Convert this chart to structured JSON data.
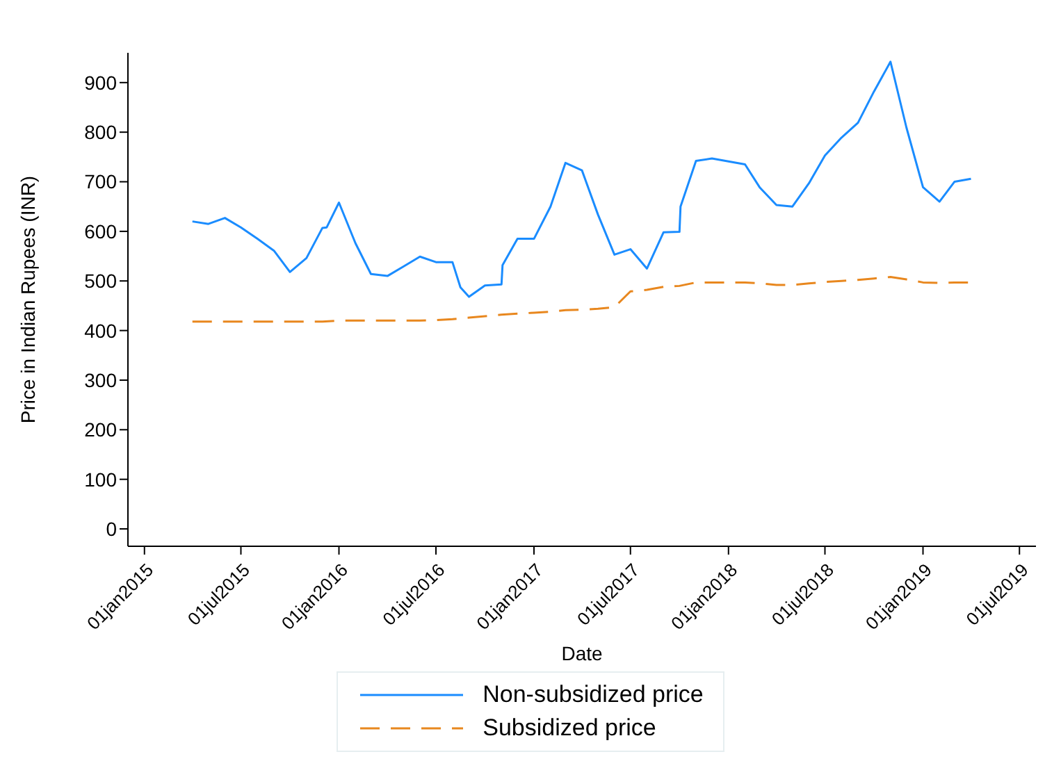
{
  "chart_data": {
    "type": "line",
    "xlabel": "Date",
    "ylabel": "Price in Indian Rupees (INR)",
    "xlim": [
      "2014-12-01",
      "2019-08-01"
    ],
    "xticks": [
      {
        "value": "2015-01-01",
        "label": "01jan2015"
      },
      {
        "value": "2015-07-01",
        "label": "01jul2015"
      },
      {
        "value": "2016-01-01",
        "label": "01jan2016"
      },
      {
        "value": "2016-07-01",
        "label": "01jul2016"
      },
      {
        "value": "2017-01-01",
        "label": "01jan2017"
      },
      {
        "value": "2017-07-01",
        "label": "01jul2017"
      },
      {
        "value": "2018-01-01",
        "label": "01jan2018"
      },
      {
        "value": "2018-07-01",
        "label": "01jul2018"
      },
      {
        "value": "2019-01-01",
        "label": "01jan2019"
      },
      {
        "value": "2019-07-01",
        "label": "01jul2019"
      }
    ],
    "ylim": [
      -35,
      960
    ],
    "yticks": [
      0,
      100,
      200,
      300,
      400,
      500,
      600,
      700,
      800,
      900
    ],
    "legend": "bottom",
    "marker": "none",
    "series": [
      {
        "name": "Non-subsidized price",
        "color": "#1a8cff",
        "line_style": "solid",
        "x": [
          "2015-04-01",
          "2015-05-01",
          "2015-06-01",
          "2015-07-01",
          "2015-08-01",
          "2015-09-01",
          "2015-10-01",
          "2015-11-01",
          "2015-12-01",
          "2015-12-09",
          "2016-01-01",
          "2016-02-01",
          "2016-03-01",
          "2016-04-01",
          "2016-05-01",
          "2016-06-01",
          "2016-07-01",
          "2016-08-01",
          "2016-08-16",
          "2016-09-01",
          "2016-10-01",
          "2016-11-01",
          "2016-11-03",
          "2016-12-01",
          "2017-01-01",
          "2017-02-01",
          "2017-03-01",
          "2017-04-01",
          "2017-05-01",
          "2017-06-01",
          "2017-07-01",
          "2017-08-01",
          "2017-09-01",
          "2017-10-01",
          "2017-10-03",
          "2017-11-01",
          "2017-12-01",
          "2018-01-01",
          "2018-02-01",
          "2018-03-01",
          "2018-04-01",
          "2018-05-01",
          "2018-06-01",
          "2018-07-01",
          "2018-08-01",
          "2018-09-01",
          "2018-10-01",
          "2018-11-01",
          "2018-12-01",
          "2019-01-01",
          "2019-02-01",
          "2019-03-01",
          "2019-04-01"
        ],
        "values": [
          620,
          615,
          627,
          608,
          585,
          561,
          518,
          546,
          607,
          608,
          658,
          576,
          514,
          510,
          529,
          549,
          538,
          538,
          487,
          468,
          491,
          493,
          532,
          585,
          585,
          650,
          738,
          723,
          634,
          553,
          564,
          525,
          598,
          599,
          650,
          742,
          747,
          741,
          735,
          688,
          653,
          650,
          697,
          753,
          789,
          819,
          882,
          942,
          809,
          689,
          660,
          700,
          706
        ]
      },
      {
        "name": "Subsidized price",
        "color": "#e8871e",
        "line_style": "dashed",
        "x": [
          "2015-04-01",
          "2015-05-01",
          "2015-06-01",
          "2015-07-01",
          "2015-08-01",
          "2015-09-01",
          "2015-10-01",
          "2015-11-01",
          "2015-12-01",
          "2016-01-01",
          "2016-02-01",
          "2016-03-01",
          "2016-04-01",
          "2016-05-01",
          "2016-06-01",
          "2016-07-01",
          "2016-08-01",
          "2016-09-01",
          "2016-10-01",
          "2016-11-01",
          "2016-12-01",
          "2017-01-01",
          "2017-02-01",
          "2017-03-01",
          "2017-04-01",
          "2017-05-01",
          "2017-06-01",
          "2017-07-01",
          "2017-08-01",
          "2017-09-01",
          "2017-10-01",
          "2017-11-01",
          "2017-12-01",
          "2018-01-01",
          "2018-02-01",
          "2018-03-01",
          "2018-04-01",
          "2018-05-01",
          "2018-06-01",
          "2018-07-01",
          "2018-08-01",
          "2018-09-01",
          "2018-10-01",
          "2018-11-01",
          "2018-12-01",
          "2019-01-01",
          "2019-02-01",
          "2019-03-01",
          "2019-04-01"
        ],
        "values": [
          418,
          418,
          418,
          418,
          418,
          418,
          418,
          418,
          418,
          420,
          420,
          420,
          420,
          420,
          420,
          421,
          423,
          426,
          429,
          432,
          434,
          436,
          438,
          441,
          442,
          444,
          447,
          479,
          482,
          488,
          490,
          497,
          497,
          497,
          497,
          495,
          492,
          492,
          495,
          498,
          500,
          502,
          505,
          508,
          503,
          497,
          496,
          497,
          497
        ]
      }
    ]
  }
}
